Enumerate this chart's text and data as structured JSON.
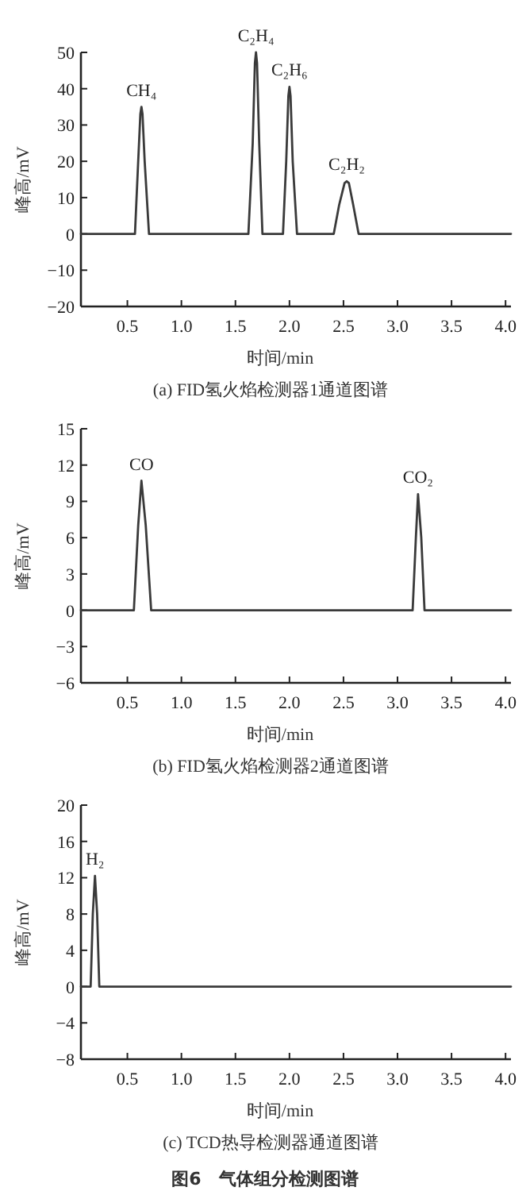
{
  "chart_data": [
    {
      "type": "line",
      "title": "(a) FID氢火焰检测器1通道图谱",
      "xlabel": "时间/min",
      "ylabel": "峰高/mV",
      "xlim": [
        0.07,
        4.05
      ],
      "ylim": [
        -20,
        50
      ],
      "xticks": [
        {
          "value": 0.5,
          "label": "0.5"
        },
        {
          "value": 1,
          "label": "1.0"
        },
        {
          "value": 1.5,
          "label": "1.5"
        },
        {
          "value": 2,
          "label": "2.0"
        },
        {
          "value": 2.5,
          "label": "2.5"
        },
        {
          "value": 3,
          "label": "3.0"
        },
        {
          "value": 3.5,
          "label": "3.5"
        },
        {
          "value": 4,
          "label": "4.0"
        }
      ],
      "yticks": [
        {
          "value": -20,
          "label": "−20"
        },
        {
          "value": -10,
          "label": "−10"
        },
        0,
        10,
        20,
        30,
        40,
        50
      ],
      "series": [
        {
          "color": "#3a3a3a",
          "x": [
            0.07,
            0.57,
            0.6,
            0.62,
            0.63,
            0.64,
            0.66,
            0.7,
            1.62,
            1.66,
            1.68,
            1.69,
            1.7,
            1.72,
            1.75,
            1.94,
            1.97,
            1.99,
            2.0,
            2.01,
            2.03,
            2.07,
            2.41,
            2.46,
            2.51,
            2.53,
            2.55,
            2.59,
            2.64,
            4.05
          ],
          "values": [
            0,
            0,
            20,
            33,
            35,
            33,
            20,
            0,
            0,
            25,
            47,
            50,
            47,
            25,
            0,
            0,
            20,
            38,
            40.5,
            38,
            20,
            0,
            0,
            8,
            14,
            14.5,
            14,
            8,
            0,
            0
          ]
        }
      ],
      "annotations": [
        {
          "text": "CH₄",
          "x": 0.63,
          "y": 35
        },
        {
          "text": "C₂H₄",
          "x": 1.69,
          "y": 50
        },
        {
          "text": "C₂H₆",
          "x": 2.0,
          "y": 40.5
        },
        {
          "text": "C₂H₂",
          "x": 2.53,
          "y": 14.5
        }
      ]
    },
    {
      "type": "line",
      "title": "(b) FID氢火焰检测器2通道图谱",
      "xlabel": "时间/min",
      "ylabel": "峰高/mV",
      "xlim": [
        0.07,
        4.05
      ],
      "ylim": [
        -6,
        15
      ],
      "xticks": [
        {
          "value": 0.5,
          "label": "0.5"
        },
        {
          "value": 1,
          "label": "1.0"
        },
        {
          "value": 1.5,
          "label": "1.5"
        },
        {
          "value": 2,
          "label": "2.0"
        },
        {
          "value": 2.5,
          "label": "2.5"
        },
        {
          "value": 3,
          "label": "3.0"
        },
        {
          "value": 3.5,
          "label": "3.5"
        },
        {
          "value": 4,
          "label": "4.0"
        }
      ],
      "yticks": [
        {
          "value": -6,
          "label": "−6"
        },
        {
          "value": -3,
          "label": "−3"
        },
        0,
        3,
        6,
        9,
        12,
        15
      ],
      "series": [
        {
          "color": "#3a3a3a",
          "x": [
            0.07,
            0.56,
            0.6,
            0.63,
            0.67,
            0.72,
            3.14,
            3.17,
            3.19,
            3.22,
            3.25,
            4.05
          ],
          "values": [
            0,
            0,
            7,
            10.7,
            7,
            0,
            0,
            6,
            9.6,
            6,
            0,
            0
          ]
        }
      ],
      "annotations": [
        {
          "text": "CO",
          "x": 0.63,
          "y": 10.7
        },
        {
          "text": "CO₂",
          "x": 3.19,
          "y": 9.6
        }
      ]
    },
    {
      "type": "line",
      "title": "(c) TCD热导检测器通道图谱",
      "xlabel": "时间/min",
      "ylabel": "峰高/mV",
      "xlim": [
        0.07,
        4.05
      ],
      "ylim": [
        -8,
        20
      ],
      "xticks": [
        {
          "value": 0.5,
          "label": "0.5"
        },
        {
          "value": 1,
          "label": "1.0"
        },
        {
          "value": 1.5,
          "label": "1.5"
        },
        {
          "value": 2,
          "label": "2.0"
        },
        {
          "value": 2.5,
          "label": "2.5"
        },
        {
          "value": 3,
          "label": "3.0"
        },
        {
          "value": 3.5,
          "label": "3.5"
        },
        {
          "value": 4,
          "label": "4.0"
        }
      ],
      "yticks": [
        {
          "value": -8,
          "label": "−8"
        },
        {
          "value": -4,
          "label": "−4"
        },
        0,
        4,
        8,
        12,
        16,
        20
      ],
      "series": [
        {
          "color": "#3a3a3a",
          "x": [
            0.07,
            0.16,
            0.18,
            0.2,
            0.22,
            0.24,
            4.05
          ],
          "values": [
            0,
            0,
            8,
            12.2,
            8,
            0,
            0
          ]
        }
      ],
      "annotations": [
        {
          "text": "H₂",
          "x": 0.2,
          "y": 12.2
        },
        "图6　气体组分检测图谱"
      ]
    }
  ]
}
